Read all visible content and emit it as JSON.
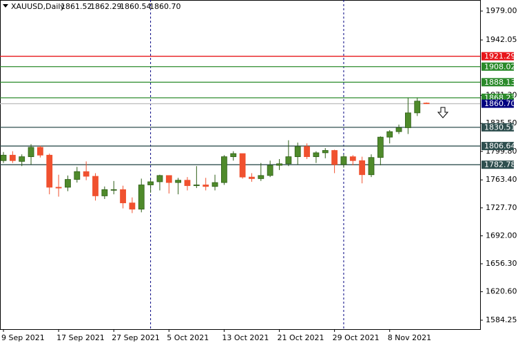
{
  "chart_data": {
    "type": "candlestick",
    "title": "XAUUSD,Daily",
    "header_values": [
      "1861.52",
      "1862.29",
      "1860.54",
      "1860.70"
    ],
    "categories": [
      "9 Sep 2021",
      null,
      null,
      null,
      null,
      null,
      "17 Sep 2021",
      null,
      null,
      null,
      null,
      null,
      "27 Sep 2021",
      null,
      null,
      null,
      null,
      null,
      "5 Oct 2021",
      null,
      null,
      null,
      null,
      null,
      "13 Oct 2021",
      null,
      null,
      null,
      null,
      null,
      "21 Oct 2021",
      null,
      null,
      null,
      null,
      null,
      "29 Oct 2021",
      null,
      null,
      null,
      null,
      null,
      "8 Nov 2021",
      null,
      null,
      null,
      null
    ],
    "open": [
      1788,
      1795,
      1787,
      1793,
      1805,
      1795,
      1754,
      1754,
      1764,
      1774,
      1768,
      1743,
      1751,
      1751,
      1734,
      1726,
      1757,
      1761,
      1769,
      1760,
      1763,
      1756,
      1757,
      1755,
      1760,
      1793,
      1797,
      1767,
      1765,
      1769,
      1782,
      1784,
      1793,
      1806,
      1793,
      1798,
      1801,
      1783,
      1793,
      1788,
      1770,
      1792,
      1818,
      1825,
      1830,
      1849,
      1861.52
    ],
    "high": [
      1799,
      1800,
      1796,
      1809,
      1807,
      1797,
      1770,
      1769,
      1780,
      1787,
      1772,
      1755,
      1762,
      1756,
      1741,
      1765,
      1764,
      1770,
      1769,
      1766,
      1767,
      1781,
      1766,
      1770,
      1795,
      1800,
      1797,
      1772,
      1785,
      1788,
      1790,
      1814,
      1811,
      1810,
      1800,
      1804,
      1802,
      1796,
      1795,
      1793,
      1796,
      1819,
      1827,
      1834,
      1868,
      1868,
      1862.29
    ],
    "low": [
      1785,
      1785,
      1781,
      1783,
      1792,
      1745,
      1742,
      1749,
      1760,
      1763,
      1737,
      1739,
      1745,
      1727,
      1721,
      1722,
      1747,
      1750,
      1746,
      1745,
      1750,
      1753,
      1750,
      1750,
      1757,
      1788,
      1765,
      1761,
      1762,
      1767,
      1776,
      1781,
      1783,
      1790,
      1785,
      1791,
      1772,
      1779,
      1782,
      1759,
      1767,
      1782,
      1810,
      1822,
      1822,
      1845,
      1860.54
    ],
    "close": [
      1795,
      1788,
      1793,
      1805,
      1795,
      1754,
      1753,
      1764,
      1774,
      1768,
      1743,
      1751,
      1751,
      1734,
      1726,
      1757,
      1761,
      1769,
      1760,
      1763,
      1756,
      1757,
      1755,
      1760,
      1793,
      1797,
      1767,
      1765,
      1769,
      1782,
      1784,
      1793,
      1806,
      1793,
      1798,
      1801,
      1783,
      1793,
      1788,
      1770,
      1792,
      1818,
      1825,
      1830,
      1849,
      1864,
      1860.7
    ],
    "up_color": "#4f8a2b",
    "down_color": "#f0512f",
    "ylim": [
      1572.8,
      1993.1
    ],
    "yticks": [
      {
        "value": 1979,
        "label": "1979.00"
      },
      {
        "value": 1942.05,
        "label": "1942.05"
      },
      {
        "value": 1871.3,
        "label": "1871.30"
      },
      {
        "value": 1835.5,
        "label": "1835.50"
      },
      {
        "value": 1799.8,
        "label": "1799.80"
      },
      {
        "value": 1763.4,
        "label": "1763.40"
      },
      {
        "value": 1727.7,
        "label": "1727.70"
      },
      {
        "value": 1692,
        "label": "1692.00"
      },
      {
        "value": 1656.3,
        "label": "1656.30"
      },
      {
        "value": 1620.6,
        "label": "1620.60"
      },
      1584.25
    ],
    "levels": [
      {
        "value": 1921.29,
        "color": "#e8161b"
      },
      {
        "value": 1908.02,
        "color": "#2a8a2a"
      },
      {
        "value": 1888.13,
        "color": "#2a8a2a"
      },
      {
        "value": 1868.23,
        "color": "#2a8a2a"
      },
      {
        "value": 1860.7,
        "label": "1860.70",
        "color": "#000080",
        "line_color": "#c0c0c0"
      },
      {
        "value": 1830.51,
        "color": "#2f4f4f"
      },
      {
        "value": 1806.64,
        "color": "#2f4f4f"
      },
      {
        "value": 1782.78,
        "color": "#2f4f4f"
      }
    ]
  }
}
